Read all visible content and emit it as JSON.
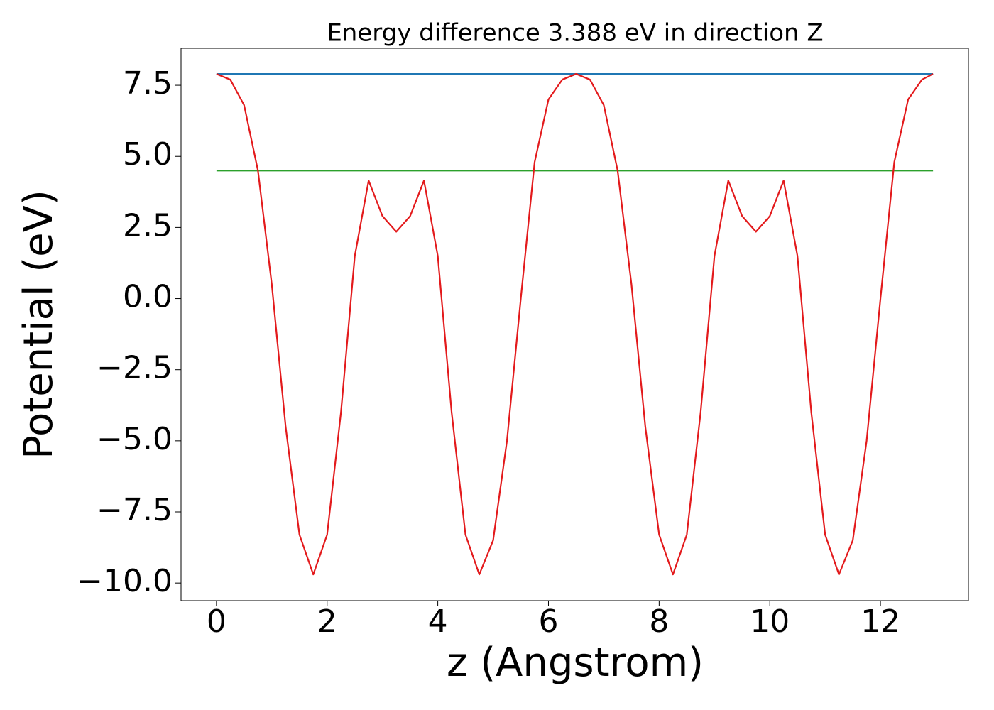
{
  "chart_data": {
    "type": "line",
    "title": "Energy difference 3.388 eV in direction Z",
    "x_label": "z (Angstrom)",
    "y_label": "Potential (eV)",
    "xlim": [
      -0.64,
      13.59
    ],
    "ylim": [
      -10.62,
      8.8
    ],
    "xticks": [
      0,
      2,
      4,
      6,
      8,
      10,
      12
    ],
    "yticks": [
      7.5,
      {
        "value": 5,
        "label": "5.0"
      },
      2.5,
      {
        "value": 0,
        "label": "0.0"
      },
      {
        "value": -2.5,
        "label": "−2.5"
      },
      {
        "value": -5,
        "label": "−5.0"
      },
      {
        "value": -7.5,
        "label": "−7.5"
      },
      {
        "value": -10,
        "label": "−10.0"
      }
    ],
    "grid": false,
    "series": [
      {
        "color": "#1f77b4",
        "x": [
          0,
          12.95
        ],
        "values": [
          7.9,
          7.9
        ]
      },
      {
        "color": "#2ca02c",
        "x": [
          0,
          12.95
        ],
        "values": [
          4.5,
          4.5
        ]
      },
      {
        "color": "#e31a1c",
        "x": [
          0,
          0.25,
          0.5,
          0.75,
          1,
          1.25,
          1.5,
          1.75,
          2,
          2.25,
          2.5,
          2.75,
          3,
          3.25,
          3.5,
          3.75,
          4,
          4.25,
          4.5,
          4.75,
          5,
          5.25,
          5.5,
          5.75,
          6,
          6.25,
          6.5,
          6.75,
          7,
          7.25,
          7.5,
          7.75,
          8,
          8.25,
          8.5,
          8.75,
          9,
          9.25,
          9.5,
          9.75,
          10,
          10.25,
          10.5,
          10.75,
          11,
          11.25,
          11.5,
          11.75,
          12,
          12.25,
          12.5,
          12.75,
          12.95
        ],
        "values": [
          7.9,
          7.7,
          6.8,
          4.5,
          0.5,
          -4.5,
          -8.3,
          -9.7,
          -8.3,
          -4.0,
          1.5,
          4.15,
          2.9,
          2.35,
          2.9,
          4.15,
          1.5,
          -4.0,
          -8.3,
          -9.7,
          -8.5,
          -5.0,
          0.0,
          4.8,
          7.0,
          7.7,
          7.9,
          7.7,
          6.8,
          4.5,
          0.5,
          -4.5,
          -8.3,
          -9.7,
          -8.3,
          -4.0,
          1.5,
          4.15,
          2.9,
          2.35,
          2.9,
          4.15,
          1.5,
          -4.0,
          -8.3,
          -9.7,
          -8.5,
          -5.0,
          0.0,
          4.8,
          7.0,
          7.7,
          7.9
        ]
      }
    ]
  }
}
